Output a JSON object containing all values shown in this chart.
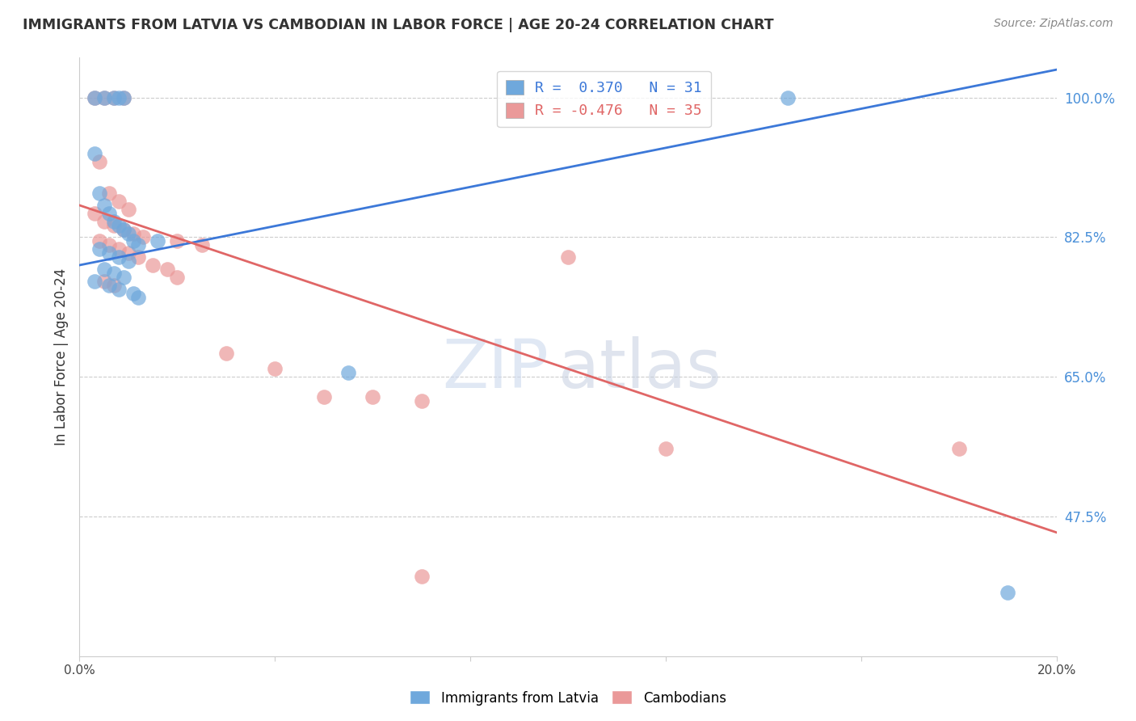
{
  "title": "IMMIGRANTS FROM LATVIA VS CAMBODIAN IN LABOR FORCE | AGE 20-24 CORRELATION CHART",
  "source": "Source: ZipAtlas.com",
  "ylabel": "In Labor Force | Age 20-24",
  "xlim": [
    0.0,
    0.2
  ],
  "ylim": [
    0.3,
    1.05
  ],
  "ytick_labels_right": [
    "100.0%",
    "82.5%",
    "65.0%",
    "47.5%"
  ],
  "ytick_vals_right": [
    1.0,
    0.825,
    0.65,
    0.475
  ],
  "legend_r_blue": "0.370",
  "legend_n_blue": "31",
  "legend_r_pink": "-0.476",
  "legend_n_pink": "35",
  "legend_label_blue": "Immigrants from Latvia",
  "legend_label_pink": "Cambodians",
  "blue_color": "#6fa8dc",
  "pink_color": "#ea9999",
  "blue_line_color": "#3c78d8",
  "pink_line_color": "#e06666",
  "blue_line_x": [
    0.0,
    0.2
  ],
  "blue_line_y": [
    0.79,
    1.035
  ],
  "pink_line_x": [
    0.0,
    0.2
  ],
  "pink_line_y": [
    0.865,
    0.455
  ],
  "blue_x": [
    0.003,
    0.005,
    0.007,
    0.008,
    0.009,
    0.003,
    0.004,
    0.005,
    0.006,
    0.007,
    0.008,
    0.009,
    0.01,
    0.011,
    0.012,
    0.004,
    0.006,
    0.008,
    0.01,
    0.005,
    0.007,
    0.009,
    0.003,
    0.006,
    0.008,
    0.011,
    0.012,
    0.016,
    0.055,
    0.145,
    0.19
  ],
  "blue_y": [
    1.0,
    1.0,
    1.0,
    1.0,
    1.0,
    0.93,
    0.88,
    0.865,
    0.855,
    0.845,
    0.84,
    0.835,
    0.83,
    0.82,
    0.815,
    0.81,
    0.805,
    0.8,
    0.795,
    0.785,
    0.78,
    0.775,
    0.77,
    0.765,
    0.76,
    0.755,
    0.75,
    0.82,
    0.655,
    1.0,
    0.38
  ],
  "pink_x": [
    0.003,
    0.005,
    0.007,
    0.009,
    0.004,
    0.006,
    0.008,
    0.01,
    0.003,
    0.005,
    0.007,
    0.009,
    0.011,
    0.013,
    0.004,
    0.006,
    0.008,
    0.01,
    0.012,
    0.015,
    0.018,
    0.02,
    0.005,
    0.007,
    0.02,
    0.025,
    0.03,
    0.04,
    0.05,
    0.06,
    0.07,
    0.1,
    0.12,
    0.18,
    0.07
  ],
  "pink_y": [
    1.0,
    1.0,
    1.0,
    1.0,
    0.92,
    0.88,
    0.87,
    0.86,
    0.855,
    0.845,
    0.84,
    0.835,
    0.83,
    0.825,
    0.82,
    0.815,
    0.81,
    0.805,
    0.8,
    0.79,
    0.785,
    0.775,
    0.77,
    0.765,
    0.82,
    0.815,
    0.68,
    0.66,
    0.625,
    0.625,
    0.62,
    0.8,
    0.56,
    0.56,
    0.4
  ]
}
